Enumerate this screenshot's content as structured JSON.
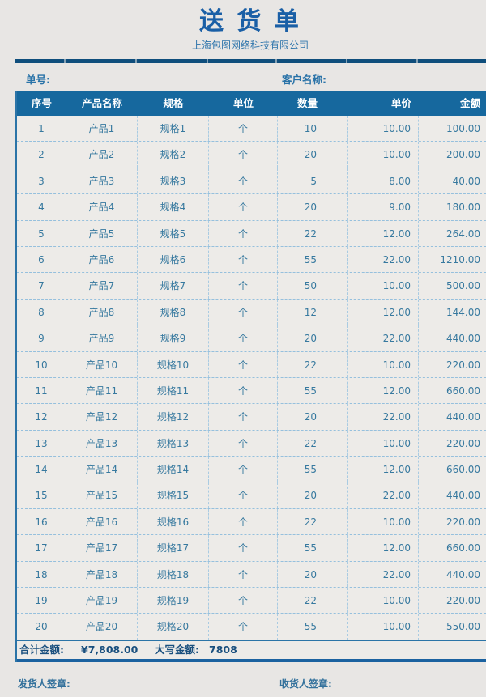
{
  "page": {
    "bg_color": "#e8e6e4",
    "accent_color": "#1a5fa6",
    "header_bar_color": "#16689e",
    "row_text_color": "#37799f"
  },
  "header": {
    "title": "送 货 单",
    "company": "上海包图网络科技有限公司",
    "order_no_label": "单号:",
    "customer_label": "客户名称:"
  },
  "table": {
    "columns": [
      "序号",
      "产品名称",
      "规格",
      "单位",
      "数量",
      "单价",
      "金额"
    ],
    "rows": [
      [
        "1",
        "产品1",
        "规格1",
        "个",
        "10",
        "10.00",
        "100.00"
      ],
      [
        "2",
        "产品2",
        "规格2",
        "个",
        "20",
        "10.00",
        "200.00"
      ],
      [
        "3",
        "产品3",
        "规格3",
        "个",
        "5",
        "8.00",
        "40.00"
      ],
      [
        "4",
        "产品4",
        "规格4",
        "个",
        "20",
        "9.00",
        "180.00"
      ],
      [
        "5",
        "产品5",
        "规格5",
        "个",
        "22",
        "12.00",
        "264.00"
      ],
      [
        "6",
        "产品6",
        "规格6",
        "个",
        "55",
        "22.00",
        "1210.00"
      ],
      [
        "7",
        "产品7",
        "规格7",
        "个",
        "50",
        "10.00",
        "500.00"
      ],
      [
        "8",
        "产品8",
        "规格8",
        "个",
        "12",
        "12.00",
        "144.00"
      ],
      [
        "9",
        "产品9",
        "规格9",
        "个",
        "20",
        "22.00",
        "440.00"
      ],
      [
        "10",
        "产品10",
        "规格10",
        "个",
        "22",
        "10.00",
        "220.00"
      ],
      [
        "11",
        "产品11",
        "规格11",
        "个",
        "55",
        "12.00",
        "660.00"
      ],
      [
        "12",
        "产品12",
        "规格12",
        "个",
        "20",
        "22.00",
        "440.00"
      ],
      [
        "13",
        "产品13",
        "规格13",
        "个",
        "22",
        "10.00",
        "220.00"
      ],
      [
        "14",
        "产品14",
        "规格14",
        "个",
        "55",
        "12.00",
        "660.00"
      ],
      [
        "15",
        "产品15",
        "规格15",
        "个",
        "20",
        "22.00",
        "440.00"
      ],
      [
        "16",
        "产品16",
        "规格16",
        "个",
        "22",
        "10.00",
        "220.00"
      ],
      [
        "17",
        "产品17",
        "规格17",
        "个",
        "55",
        "12.00",
        "660.00"
      ],
      [
        "18",
        "产品18",
        "规格18",
        "个",
        "20",
        "22.00",
        "440.00"
      ],
      [
        "19",
        "产品19",
        "规格19",
        "个",
        "22",
        "10.00",
        "220.00"
      ],
      [
        "20",
        "产品20",
        "规格20",
        "个",
        "55",
        "10.00",
        "550.00"
      ]
    ]
  },
  "summary": {
    "total_label": "合计金额:",
    "total_value": "¥7,808.00",
    "capital_label": "大写金额:",
    "capital_value": "7808"
  },
  "footer": {
    "shipper_label": "发货人签章:",
    "receiver_label": "收货人签章:"
  }
}
